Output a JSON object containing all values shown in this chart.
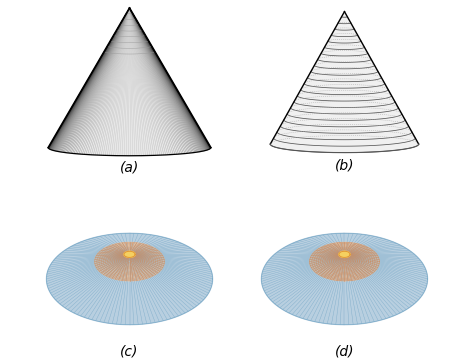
{
  "labels": [
    "(a)",
    "(b)",
    "(c)",
    "(d)"
  ],
  "label_fontsize": 10,
  "bg_color": "#ffffff",
  "n_radial_a": 120,
  "n_contour_a": 8,
  "n_contour_b": 22,
  "n_radial_cd": 120,
  "n_contour_inner_cd": 16,
  "blue_outer": "#b8cfe0",
  "salmon_inner": "#efc9a8",
  "yellow_cap": "#f5d060",
  "orange_cap_edge": "#e09030",
  "line_blue": "#7aaac8",
  "line_salmon": "#c8906a",
  "line_dark": "#333333",
  "line_gray": "#888888"
}
